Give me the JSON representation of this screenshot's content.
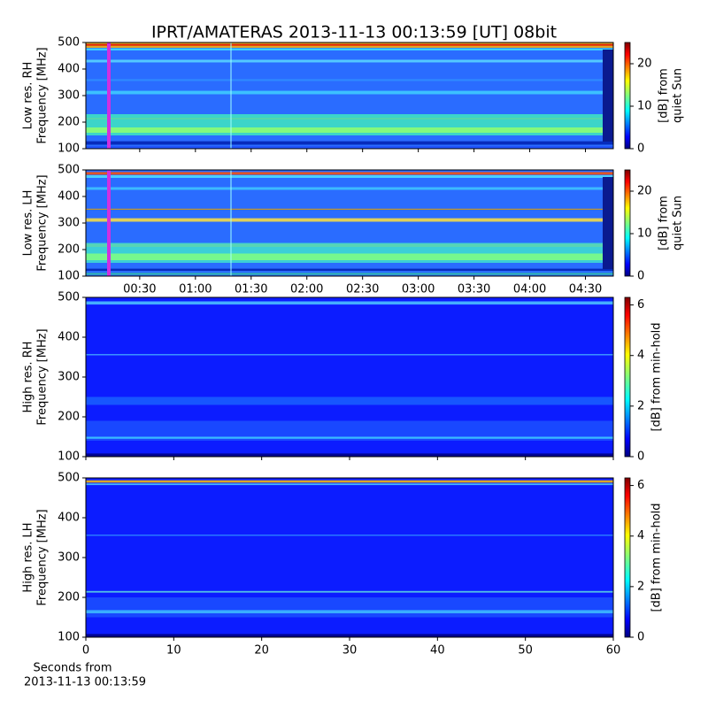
{
  "title": "IPRT/AMATERAS 2013-11-13 00:13:59 [UT]   08bit",
  "chart_data": [
    {
      "type": "spectrogram",
      "ylabel": [
        "Low res. RH",
        "Frequency [MHz]"
      ],
      "ylim": [
        100,
        500
      ],
      "yticks": [
        100,
        200,
        300,
        400,
        500
      ],
      "xlim": [
        1,
        285
      ],
      "colorbar": {
        "label": [
          "[dB] from",
          "quiet Sun"
        ],
        "lim": [
          0,
          25
        ],
        "ticks": [
          0,
          10,
          20
        ]
      }
    },
    {
      "type": "spectrogram",
      "ylabel": [
        "Low res. LH",
        "Frequency [MHz]"
      ],
      "ylim": [
        100,
        500
      ],
      "yticks": [
        100,
        200,
        300,
        400,
        500
      ],
      "xlim": [
        1,
        285
      ],
      "xticks": [
        {
          "value": 30,
          "label": "00:30"
        },
        {
          "value": 60,
          "label": "01:00"
        },
        {
          "value": 90,
          "label": "01:30"
        },
        {
          "value": 120,
          "label": "02:00"
        },
        {
          "value": 150,
          "label": "02:30"
        },
        {
          "value": 180,
          "label": "03:00"
        },
        {
          "value": 210,
          "label": "03:30"
        },
        {
          "value": 240,
          "label": "04:00"
        },
        {
          "value": 270,
          "label": "04:30"
        }
      ],
      "colorbar": {
        "label": [
          "[dB] from",
          "quiet Sun"
        ],
        "lim": [
          0,
          25
        ],
        "ticks": [
          0,
          10,
          20
        ]
      }
    },
    {
      "type": "spectrogram",
      "ylabel": [
        "High res. RH",
        "Frequency [MHz]"
      ],
      "ylim": [
        100,
        500
      ],
      "yticks": [
        100,
        200,
        300,
        400,
        500
      ],
      "xlim": [
        0,
        60
      ],
      "colorbar": {
        "label": [
          "[dB] from min-hold"
        ],
        "lim": [
          0,
          6.3
        ],
        "ticks": [
          0,
          2,
          4,
          6
        ]
      }
    },
    {
      "type": "spectrogram",
      "ylabel": [
        "High res. LH",
        "Frequency [MHz]"
      ],
      "ylim": [
        100,
        500
      ],
      "yticks": [
        100,
        200,
        300,
        400,
        500
      ],
      "xlim": [
        0,
        60
      ],
      "xticks": [
        0,
        10,
        20,
        30,
        40,
        50,
        60
      ],
      "xlabel": [
        "Seconds from",
        "2013-11-13 00:13:59"
      ],
      "colorbar": {
        "label": [
          "[dB] from min-hold"
        ],
        "lim": [
          0,
          6.3
        ],
        "ticks": [
          0,
          2,
          4,
          6
        ]
      }
    }
  ]
}
